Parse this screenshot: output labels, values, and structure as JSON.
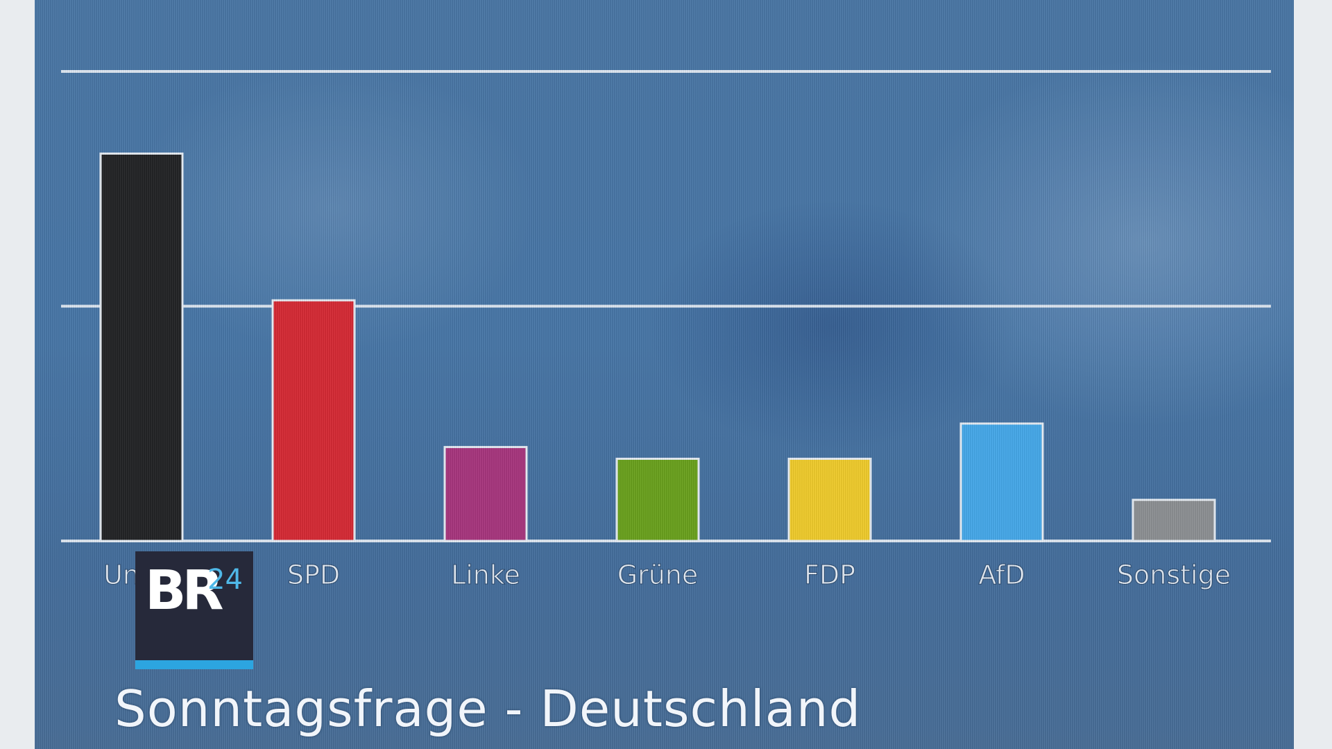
{
  "chart_data": {
    "type": "bar",
    "title": "Sonntagsfrage - Deutschland",
    "xlabel": "",
    "ylabel": "",
    "ylim": [
      0,
      40
    ],
    "grid": true,
    "gridlines": [
      20,
      40
    ],
    "categories": [
      "Union",
      "SPD",
      "Linke",
      "Grüne",
      "FDP",
      "AfD",
      "Sonstige"
    ],
    "values": [
      33,
      20.5,
      8,
      7,
      7,
      10,
      3.5
    ],
    "colors": [
      "#232426",
      "#d62a35",
      "#a8367e",
      "#6aa21e",
      "#f0cc2c",
      "#46a9ea",
      "#8d9094"
    ]
  },
  "logo": {
    "text": "BR",
    "suffix": "24",
    "accent_color": "#2ca5e0"
  }
}
